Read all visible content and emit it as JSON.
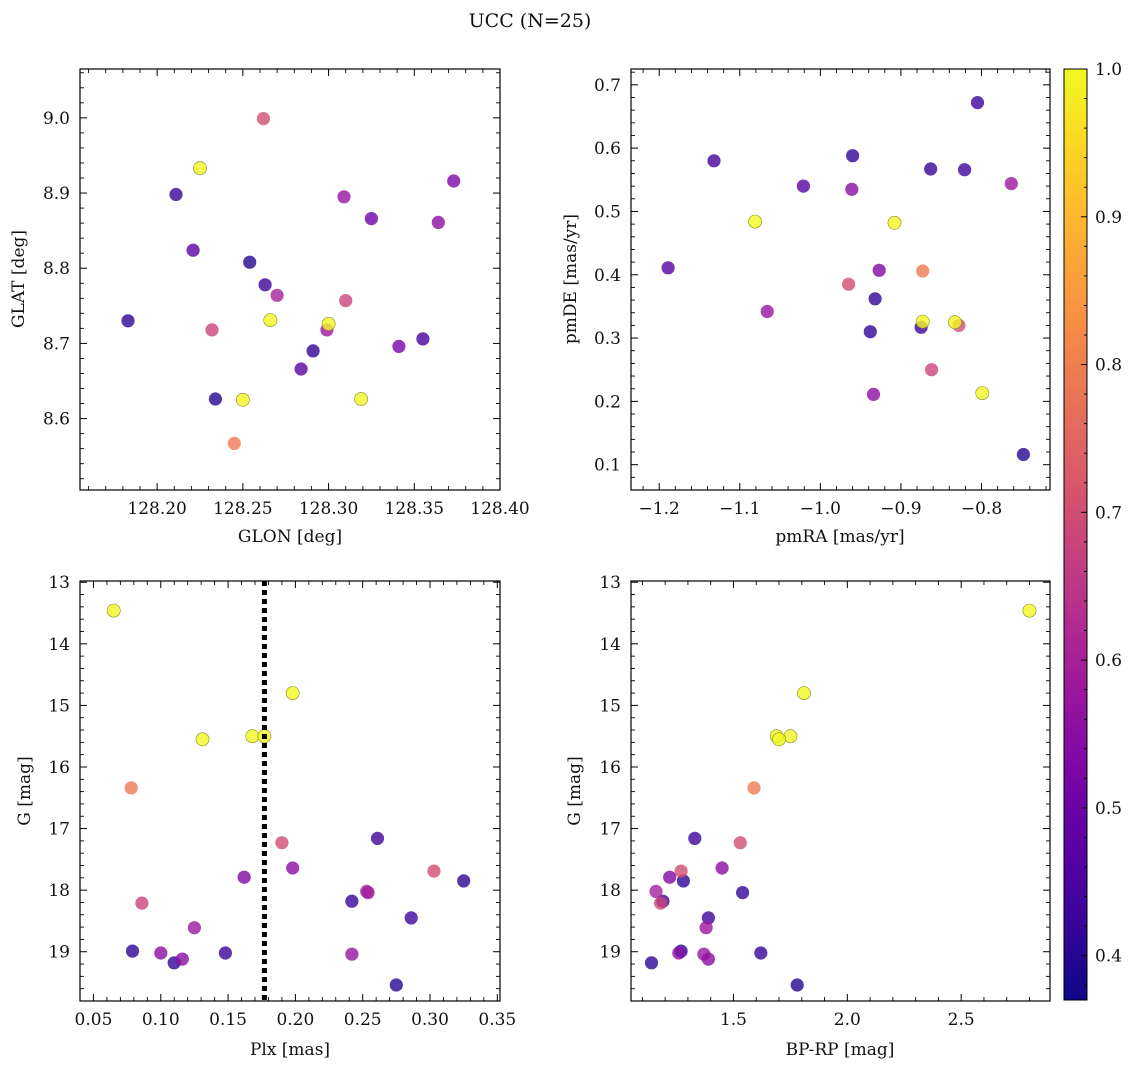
{
  "title": "UCC (N=25)",
  "colorbar": {
    "min": 0.37,
    "max": 1.0,
    "ticks": [
      0.4,
      0.5,
      0.6,
      0.7,
      0.8,
      0.9,
      1.0
    ],
    "tick_labels": [
      "0.4",
      "0.5",
      "0.6",
      "0.7",
      "0.8",
      "0.9",
      "1.0"
    ],
    "colormap": "plasma",
    "stops": [
      "#0d0887",
      "#46039f",
      "#7201a8",
      "#9c179e",
      "#bd3786",
      "#d8576b",
      "#ed7953",
      "#fb9f3a",
      "#fdca26",
      "#f0f921"
    ]
  },
  "chart_data": [
    {
      "type": "scatter",
      "xlabel": "GLON [deg]",
      "ylabel": "GLAT [deg]",
      "xlim": [
        128.155,
        128.4
      ],
      "ylim": [
        8.505,
        9.065
      ],
      "xticks": [
        128.2,
        128.25,
        128.3,
        128.35,
        128.4
      ],
      "xtick_labels": [
        "128.20",
        "128.25",
        "128.30",
        "128.35",
        "128.40"
      ],
      "yticks": [
        8.6,
        8.7,
        8.8,
        8.9,
        9.0
      ],
      "ytick_labels": [
        "8.6",
        "8.7",
        "8.8",
        "8.9",
        "9.0"
      ],
      "x": [
        128.262,
        128.225,
        128.211,
        128.373,
        128.309,
        128.325,
        128.364,
        128.221,
        128.254,
        128.263,
        128.27,
        128.183,
        128.31,
        128.232,
        128.266,
        128.299,
        128.3,
        128.355,
        128.291,
        128.341,
        128.284,
        128.319,
        128.25,
        128.234,
        128.245
      ],
      "y": [
        8.999,
        8.933,
        8.898,
        8.916,
        8.895,
        8.866,
        8.861,
        8.824,
        8.808,
        8.778,
        8.764,
        8.73,
        8.757,
        8.718,
        8.731,
        8.718,
        8.726,
        8.706,
        8.69,
        8.696,
        8.666,
        8.626,
        8.625,
        8.626,
        8.567
      ],
      "c": [
        0.7,
        1.0,
        0.42,
        0.53,
        0.57,
        0.5,
        0.55,
        0.47,
        0.4,
        0.43,
        0.6,
        0.41,
        0.68,
        0.68,
        1.0,
        0.58,
        1.0,
        0.44,
        0.41,
        0.52,
        0.47,
        1.0,
        1.0,
        0.4,
        0.79
      ]
    },
    {
      "type": "scatter",
      "xlabel": "pmRA [mas/yr]",
      "ylabel": "pmDE [mas/yr]",
      "xlim": [
        -1.235,
        -0.715
      ],
      "ylim": [
        0.06,
        0.725
      ],
      "xticks": [
        -1.2,
        -1.1,
        -1.0,
        -0.9,
        -0.8
      ],
      "xtick_labels": [
        "−1.2",
        "−1.1",
        "−1.0",
        "−0.9",
        "−0.8"
      ],
      "yticks": [
        0.1,
        0.2,
        0.3,
        0.4,
        0.5,
        0.6,
        0.7
      ],
      "ytick_labels": [
        "0.1",
        "0.2",
        "0.3",
        "0.4",
        "0.5",
        "0.6",
        "0.7"
      ],
      "x": [
        -0.805,
        -1.132,
        -0.96,
        -0.863,
        -0.821,
        -1.021,
        -0.961,
        -0.763,
        -1.081,
        -0.908,
        -1.189,
        -0.927,
        -0.965,
        -0.873,
        -1.066,
        -0.932,
        -0.938,
        -0.875,
        -0.873,
        -0.833,
        -0.828,
        -0.862,
        -0.934,
        -0.799,
        -0.748
      ],
      "y": [
        0.672,
        0.58,
        0.588,
        0.567,
        0.566,
        0.54,
        0.535,
        0.544,
        0.484,
        0.482,
        0.411,
        0.407,
        0.385,
        0.406,
        0.342,
        0.362,
        0.31,
        0.317,
        0.326,
        0.325,
        0.32,
        0.25,
        0.211,
        0.213,
        0.116
      ],
      "c": [
        0.43,
        0.44,
        0.41,
        0.42,
        0.43,
        0.47,
        0.55,
        0.58,
        1.0,
        1.0,
        0.46,
        0.53,
        0.7,
        0.79,
        0.57,
        0.41,
        0.42,
        0.43,
        1.0,
        1.0,
        0.7,
        0.68,
        0.55,
        1.0,
        0.4
      ]
    },
    {
      "type": "scatter",
      "xlabel": "Plx [mas]",
      "ylabel": "G [mag]",
      "xlim": [
        0.04,
        0.352
      ],
      "ylim": [
        19.8,
        12.98
      ],
      "xticks": [
        0.05,
        0.1,
        0.15,
        0.2,
        0.25,
        0.3,
        0.35
      ],
      "xtick_labels": [
        "0.05",
        "0.10",
        "0.15",
        "0.20",
        "0.25",
        "0.30",
        "0.35"
      ],
      "yticks": [
        13,
        14,
        15,
        16,
        17,
        18,
        19
      ],
      "ytick_labels": [
        "13",
        "14",
        "15",
        "16",
        "17",
        "18",
        "19"
      ],
      "vline": 0.177,
      "x": [
        0.065,
        0.198,
        0.131,
        0.168,
        0.177,
        0.078,
        0.19,
        0.261,
        0.198,
        0.303,
        0.162,
        0.325,
        0.253,
        0.254,
        0.086,
        0.242,
        0.286,
        0.125,
        0.079,
        0.1,
        0.148,
        0.242,
        0.116,
        0.11,
        0.275
      ],
      "y": [
        13.46,
        14.8,
        15.55,
        15.5,
        15.5,
        16.34,
        17.23,
        17.16,
        17.64,
        17.69,
        17.79,
        17.85,
        18.02,
        18.04,
        18.21,
        18.18,
        18.45,
        18.61,
        18.99,
        19.02,
        19.02,
        19.04,
        19.12,
        19.18,
        19.54
      ],
      "c": [
        1.0,
        1.0,
        1.0,
        1.0,
        1.0,
        0.79,
        0.7,
        0.43,
        0.55,
        0.7,
        0.53,
        0.41,
        0.6,
        0.57,
        0.68,
        0.42,
        0.43,
        0.58,
        0.41,
        0.55,
        0.42,
        0.57,
        0.55,
        0.41,
        0.4
      ]
    },
    {
      "type": "scatter",
      "xlabel": "BP-RP [mag]",
      "ylabel": "G [mag]",
      "xlim": [
        1.05,
        2.89
      ],
      "ylim": [
        19.8,
        12.98
      ],
      "xticks": [
        1.5,
        2.0,
        2.5
      ],
      "xtick_labels": [
        "1.5",
        "2.0",
        "2.5"
      ],
      "yticks": [
        13,
        14,
        15,
        16,
        17,
        18,
        19
      ],
      "ytick_labels": [
        "13",
        "14",
        "15",
        "16",
        "17",
        "18",
        "19"
      ],
      "x": [
        2.8,
        1.81,
        1.69,
        1.75,
        1.7,
        1.59,
        1.53,
        1.33,
        1.45,
        1.27,
        1.22,
        1.28,
        1.54,
        1.16,
        1.19,
        1.39,
        1.38,
        1.18,
        1.26,
        1.27,
        1.62,
        1.37,
        1.39,
        1.14,
        1.78
      ],
      "y": [
        13.46,
        14.8,
        15.5,
        15.5,
        15.55,
        16.34,
        17.23,
        17.16,
        17.64,
        17.69,
        17.79,
        17.85,
        18.04,
        18.02,
        18.18,
        18.45,
        18.61,
        18.21,
        19.02,
        18.99,
        19.02,
        19.04,
        19.12,
        19.18,
        19.54
      ],
      "c": [
        1.0,
        1.0,
        1.0,
        1.0,
        1.0,
        0.79,
        0.7,
        0.43,
        0.55,
        0.7,
        0.53,
        0.41,
        0.42,
        0.6,
        0.42,
        0.43,
        0.58,
        0.68,
        0.55,
        0.41,
        0.42,
        0.57,
        0.55,
        0.41,
        0.4
      ]
    }
  ]
}
